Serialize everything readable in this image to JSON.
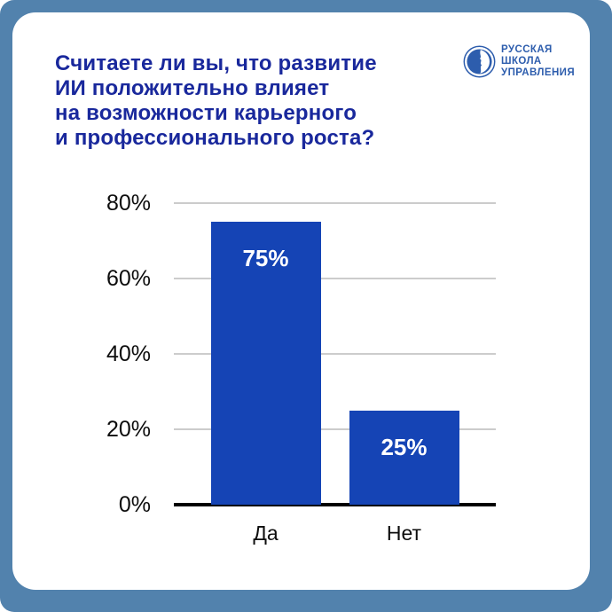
{
  "page": {
    "background": "#5282ad",
    "card_background": "#ffffff"
  },
  "header": {
    "title": "Считаете ли вы, что развитие\nИИ положительно влияет\nна возможности карьерного\nи профессионального роста?",
    "title_color": "#19289c"
  },
  "logo": {
    "name": "russian-school-of-management",
    "text": "РУССКАЯ\nШКОЛА\nУПРАВЛЕНИЯ",
    "color": "#2d5dad",
    "emblem_icon": "face-profile-in-ring-icon"
  },
  "chart_data": {
    "type": "bar",
    "title": "Считаете ли вы, что развитие ИИ положительно влияет на возможности карьерного и профессионального роста?",
    "categories": [
      "Да",
      "Нет"
    ],
    "values": [
      75,
      25
    ],
    "value_labels": [
      "75%",
      "25%"
    ],
    "yticks": [
      0,
      20,
      40,
      60,
      80
    ],
    "ytick_labels": [
      "0%",
      "20%",
      "40%",
      "60%",
      "80%"
    ],
    "ylim": [
      0,
      80
    ],
    "xlabel": "",
    "ylabel": "",
    "grid": true,
    "legend": false,
    "bar_color": "#1544b5",
    "value_label_color": "#ffffff",
    "gridline_color": "#cccccc",
    "axis_color": "#000000",
    "tick_label_color": "#0d0d0d"
  }
}
